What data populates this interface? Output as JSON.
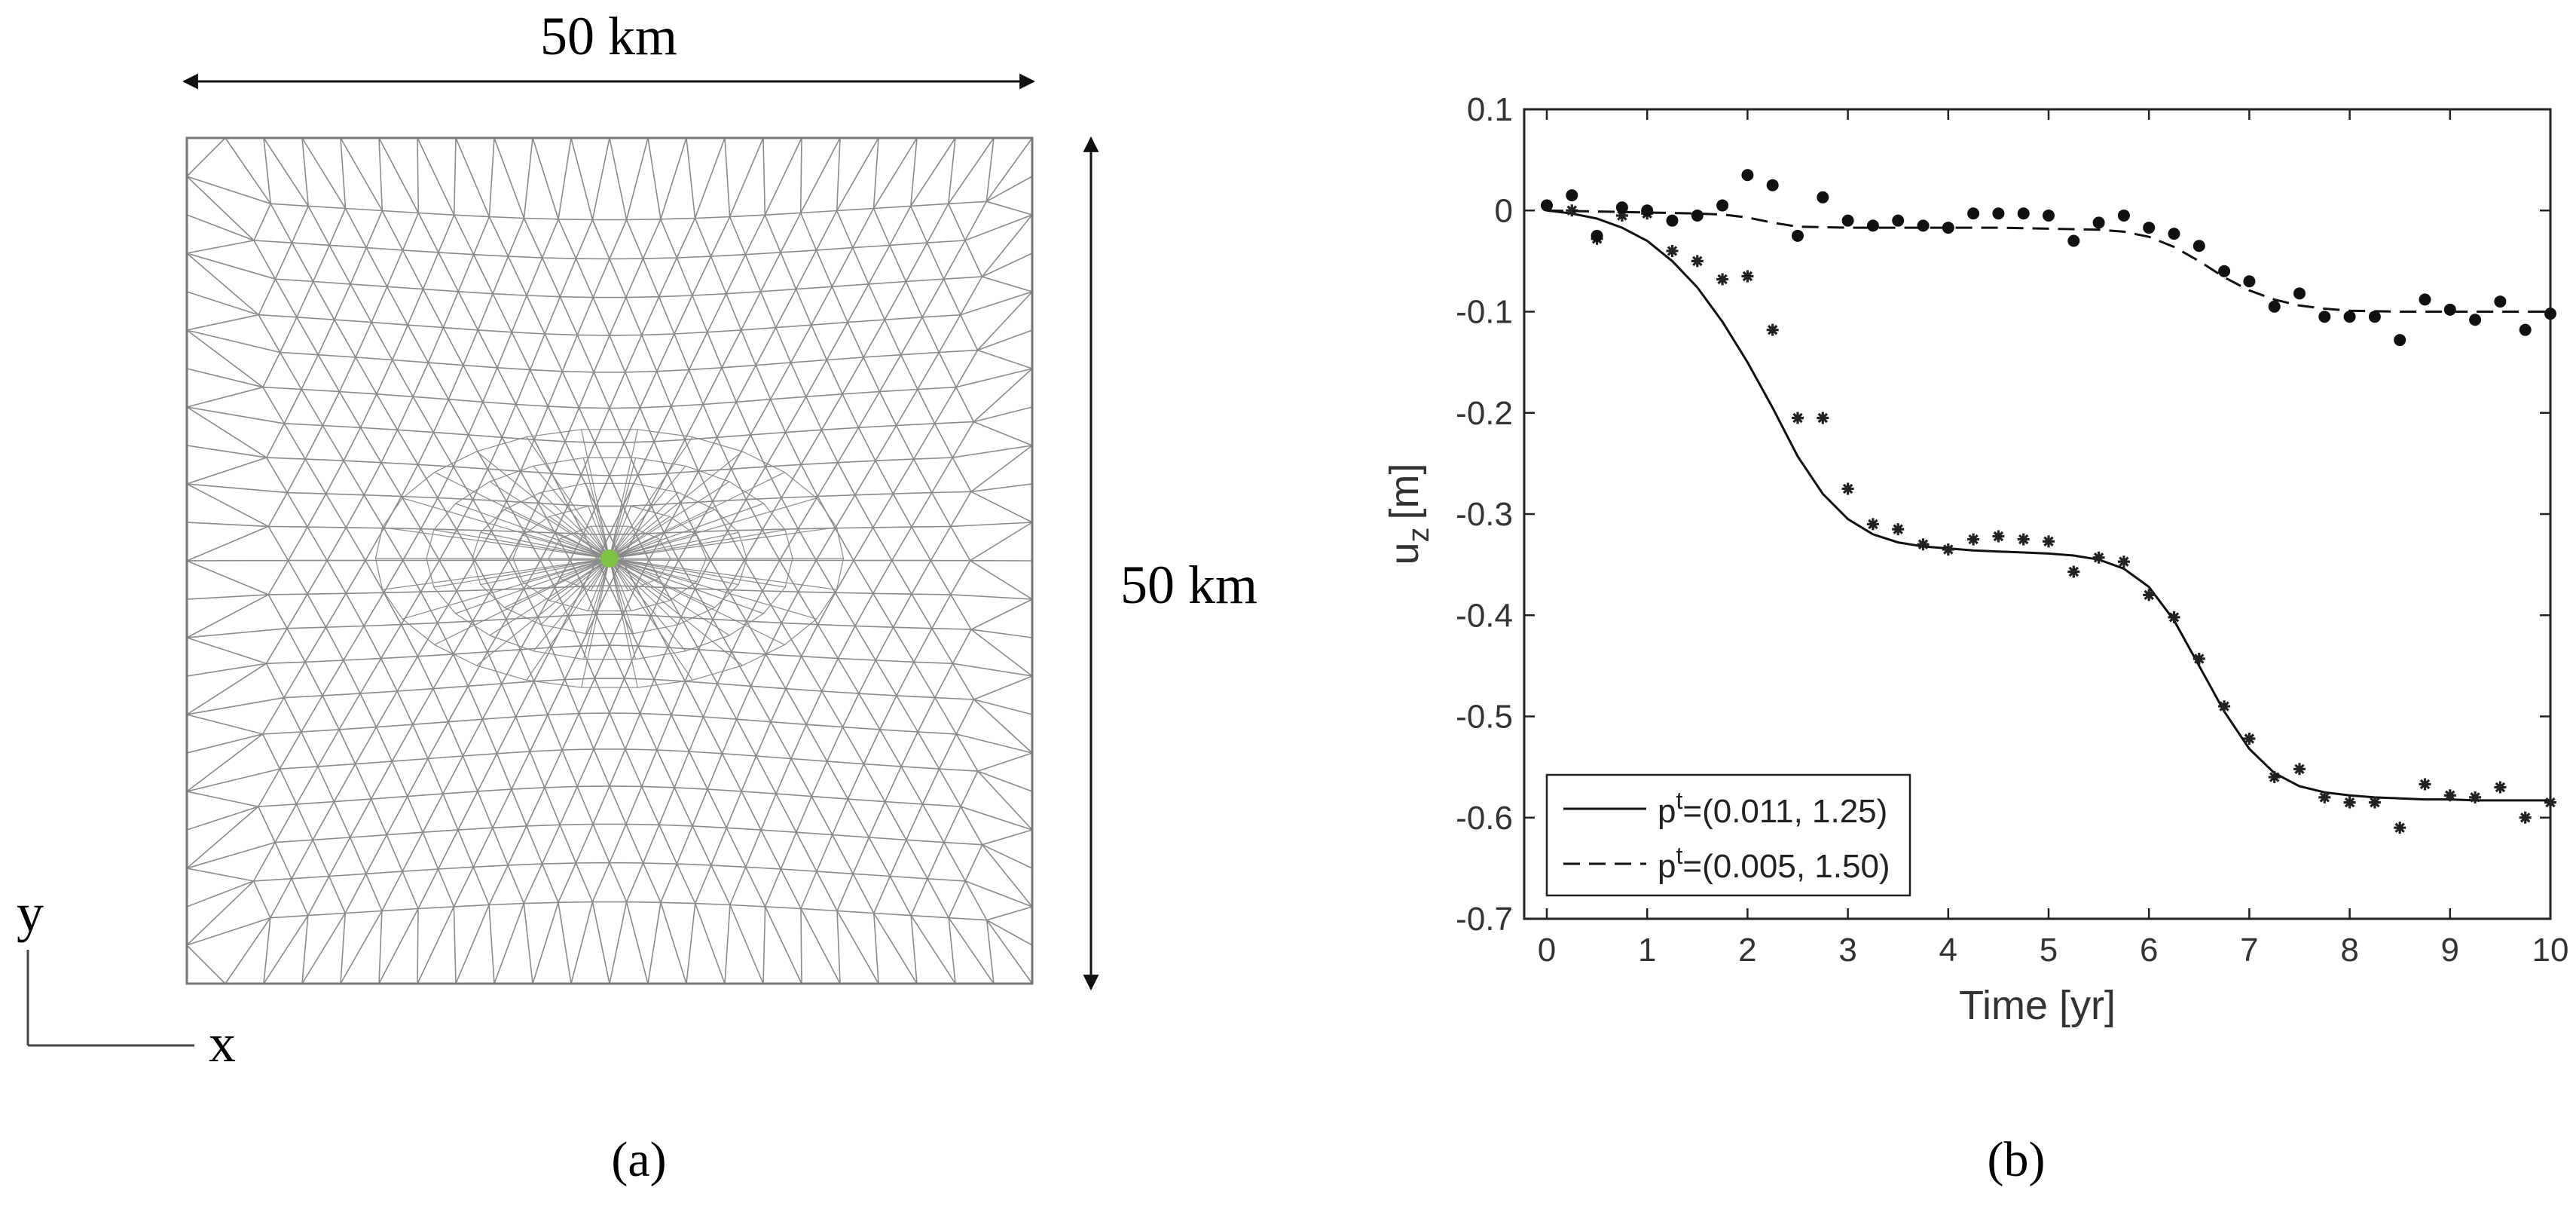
{
  "panel_a": {
    "caption": "(a)",
    "width_label": "50 km",
    "height_label": "50 km",
    "axis_y": "y",
    "axis_x": "x",
    "mesh_color": "#8a8a8a",
    "marker_color": "#7dc242"
  },
  "panel_b": {
    "caption": "(b)"
  },
  "chart_data": {
    "type": "line",
    "title": "",
    "xlabel": "Time [yr]",
    "ylabel": "u",
    "ylabel_sub": "z",
    "ylabel_unit": "[m]",
    "xlim": [
      0,
      10
    ],
    "ylim": [
      -0.7,
      0.1
    ],
    "xticks": [
      0,
      1,
      2,
      3,
      4,
      5,
      6,
      7,
      8,
      9,
      10
    ],
    "yticks": [
      0.1,
      0,
      -0.1,
      -0.2,
      -0.3,
      -0.4,
      -0.5,
      -0.6,
      -0.7
    ],
    "grid": false,
    "legend_position": "bottom-left",
    "series": [
      {
        "name": "solid",
        "legend_prefix": "p",
        "legend_sup": "t",
        "legend_rest": "=(0.011, 1.25)",
        "style": "solid",
        "line_x": [
          0,
          0.25,
          0.5,
          0.75,
          1.0,
          1.25,
          1.5,
          1.75,
          2.0,
          2.25,
          2.5,
          2.75,
          3.0,
          3.25,
          3.5,
          3.75,
          4.0,
          4.25,
          4.5,
          4.75,
          5.0,
          5.25,
          5.5,
          5.75,
          6.0,
          6.25,
          6.5,
          6.75,
          7.0,
          7.25,
          7.5,
          7.75,
          8.0,
          8.25,
          8.5,
          8.75,
          9.0,
          9.25,
          9.5,
          9.75,
          10.0
        ],
        "line_y": [
          0,
          -0.003,
          -0.008,
          -0.017,
          -0.03,
          -0.05,
          -0.076,
          -0.11,
          -0.15,
          -0.195,
          -0.243,
          -0.28,
          -0.305,
          -0.32,
          -0.328,
          -0.332,
          -0.334,
          -0.336,
          -0.337,
          -0.338,
          -0.339,
          -0.341,
          -0.345,
          -0.354,
          -0.372,
          -0.405,
          -0.45,
          -0.495,
          -0.532,
          -0.556,
          -0.569,
          -0.575,
          -0.578,
          -0.58,
          -0.581,
          -0.582,
          -0.582,
          -0.583,
          -0.583,
          -0.583,
          -0.583
        ],
        "marker": "star",
        "points_x": [
          0,
          0.25,
          0.5,
          0.75,
          1.0,
          1.25,
          1.5,
          1.75,
          2.0,
          2.25,
          2.5,
          2.75,
          3.0,
          3.25,
          3.5,
          3.75,
          4.0,
          4.25,
          4.5,
          4.75,
          5.0,
          5.25,
          5.5,
          5.75,
          6.0,
          6.25,
          6.5,
          6.75,
          7.0,
          7.25,
          7.5,
          7.75,
          8.0,
          8.25,
          8.5,
          8.75,
          9.0,
          9.25,
          9.5,
          9.75,
          10.0
        ],
        "points_y": [
          0.005,
          0.0,
          -0.028,
          -0.005,
          -0.003,
          -0.04,
          -0.05,
          -0.068,
          -0.065,
          -0.118,
          -0.205,
          -0.205,
          -0.275,
          -0.31,
          -0.315,
          -0.33,
          -0.335,
          -0.325,
          -0.322,
          -0.325,
          -0.327,
          -0.357,
          -0.343,
          -0.347,
          -0.38,
          -0.402,
          -0.443,
          -0.49,
          -0.522,
          -0.56,
          -0.552,
          -0.58,
          -0.585,
          -0.585,
          -0.61,
          -0.567,
          -0.578,
          -0.58,
          -0.57,
          -0.6,
          -0.585
        ]
      },
      {
        "name": "dashed",
        "legend_prefix": "p",
        "legend_sup": "t",
        "legend_rest": "=(0.005, 1.50)",
        "style": "dashed",
        "line_x": [
          0,
          0.5,
          1.0,
          1.5,
          1.75,
          2.0,
          2.25,
          2.5,
          3.0,
          3.5,
          4.0,
          4.5,
          5.0,
          5.5,
          5.75,
          6.0,
          6.25,
          6.5,
          6.75,
          7.0,
          7.25,
          7.5,
          7.75,
          8.0,
          8.5,
          9.0,
          9.5,
          10.0
        ],
        "line_y": [
          0,
          -0.001,
          -0.002,
          -0.003,
          -0.004,
          -0.007,
          -0.012,
          -0.016,
          -0.017,
          -0.017,
          -0.017,
          -0.017,
          -0.018,
          -0.019,
          -0.021,
          -0.026,
          -0.036,
          -0.05,
          -0.066,
          -0.079,
          -0.088,
          -0.094,
          -0.097,
          -0.099,
          -0.1,
          -0.1,
          -0.1,
          -0.1
        ],
        "marker": "circle",
        "points_x": [
          0,
          0.25,
          0.5,
          0.75,
          1.0,
          1.25,
          1.5,
          1.75,
          2.0,
          2.25,
          2.5,
          2.75,
          3.0,
          3.25,
          3.5,
          3.75,
          4.0,
          4.25,
          4.5,
          4.75,
          5.0,
          5.25,
          5.5,
          5.75,
          6.0,
          6.25,
          6.5,
          6.75,
          7.0,
          7.25,
          7.5,
          7.75,
          8.0,
          8.25,
          8.5,
          8.75,
          9.0,
          9.25,
          9.5,
          9.75,
          10.0
        ],
        "points_y": [
          0.005,
          0.015,
          -0.025,
          0.003,
          0.0,
          -0.01,
          -0.005,
          0.005,
          0.035,
          0.025,
          -0.025,
          0.013,
          -0.01,
          -0.015,
          -0.01,
          -0.015,
          -0.017,
          -0.003,
          -0.003,
          -0.003,
          -0.005,
          -0.03,
          -0.012,
          -0.005,
          -0.017,
          -0.023,
          -0.035,
          -0.06,
          -0.07,
          -0.095,
          -0.082,
          -0.105,
          -0.105,
          -0.105,
          -0.128,
          -0.088,
          -0.098,
          -0.108,
          -0.09,
          -0.118,
          -0.102
        ]
      }
    ]
  }
}
